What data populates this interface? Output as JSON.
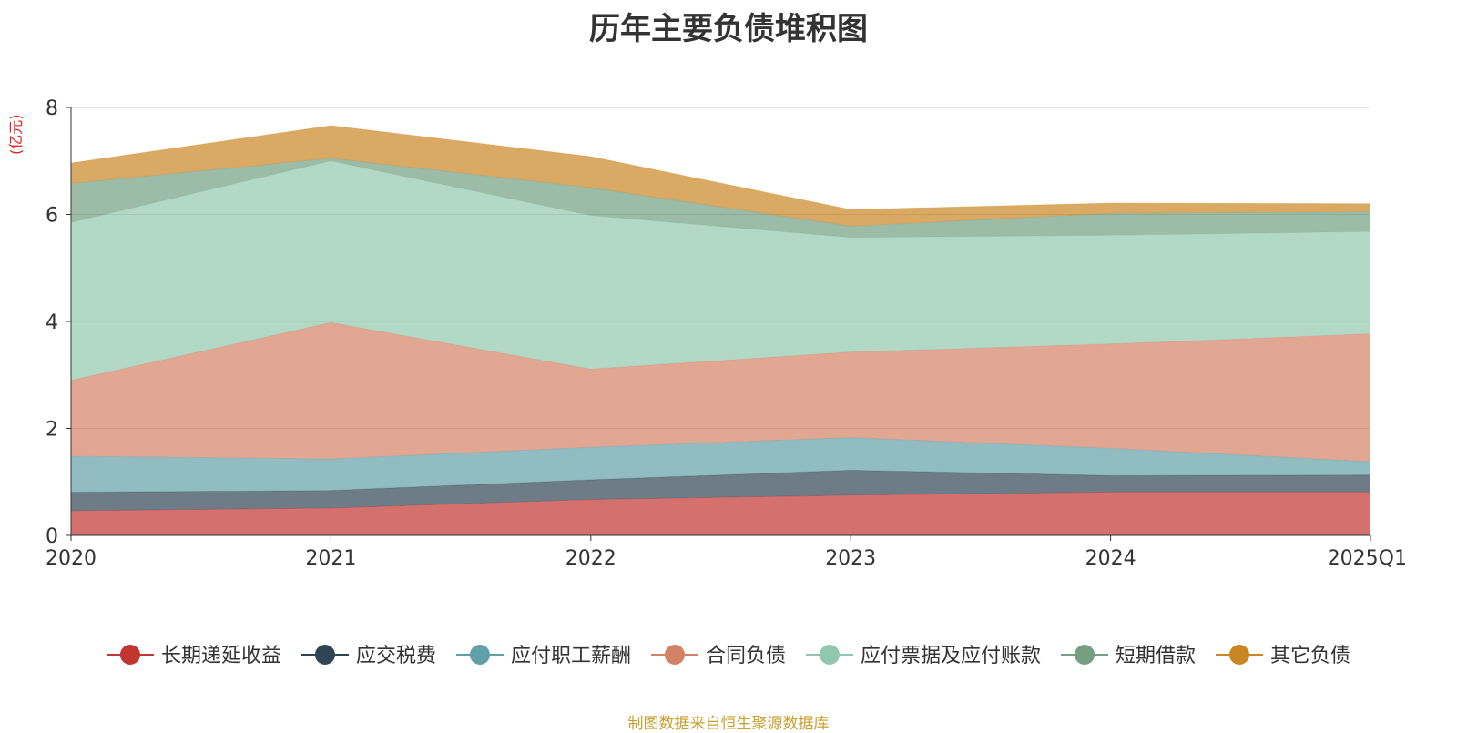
{
  "chart_data": {
    "type": "area",
    "stacked": true,
    "title": "历年主要负债堆积图",
    "unit_label": "(亿元)",
    "source": "制图数据来自恒生聚源数据库",
    "categories": [
      "2020",
      "2021",
      "2022",
      "2023",
      "2024",
      "2025Q1"
    ],
    "ylim": [
      0,
      8
    ],
    "yticks": [
      0,
      2,
      4,
      6,
      8
    ],
    "grid": true,
    "legend_position": "bottom",
    "series": [
      {
        "name": "长期递延收益",
        "color": "#c23531",
        "values": [
          0.46,
          0.51,
          0.67,
          0.75,
          0.81,
          0.81
        ]
      },
      {
        "name": "应交税费",
        "color": "#2f4554",
        "values": [
          0.35,
          0.33,
          0.37,
          0.47,
          0.31,
          0.32
        ]
      },
      {
        "name": "应付职工薪酬",
        "color": "#61a0a8",
        "values": [
          0.67,
          0.59,
          0.61,
          0.61,
          0.51,
          0.25
        ]
      },
      {
        "name": "合同负债",
        "color": "#d48265",
        "values": [
          1.42,
          2.55,
          1.46,
          1.6,
          1.95,
          2.39
        ]
      },
      {
        "name": "应付票据及应付账款",
        "color": "#91c7ae",
        "values": [
          2.95,
          3.02,
          2.87,
          2.14,
          2.03,
          1.91
        ]
      },
      {
        "name": "短期借款",
        "color": "#749f83",
        "values": [
          0.73,
          0.05,
          0.52,
          0.21,
          0.41,
          0.37
        ]
      },
      {
        "name": "其它负债",
        "color": "#ca8622",
        "values": [
          0.38,
          0.61,
          0.58,
          0.31,
          0.19,
          0.15
        ]
      }
    ]
  }
}
